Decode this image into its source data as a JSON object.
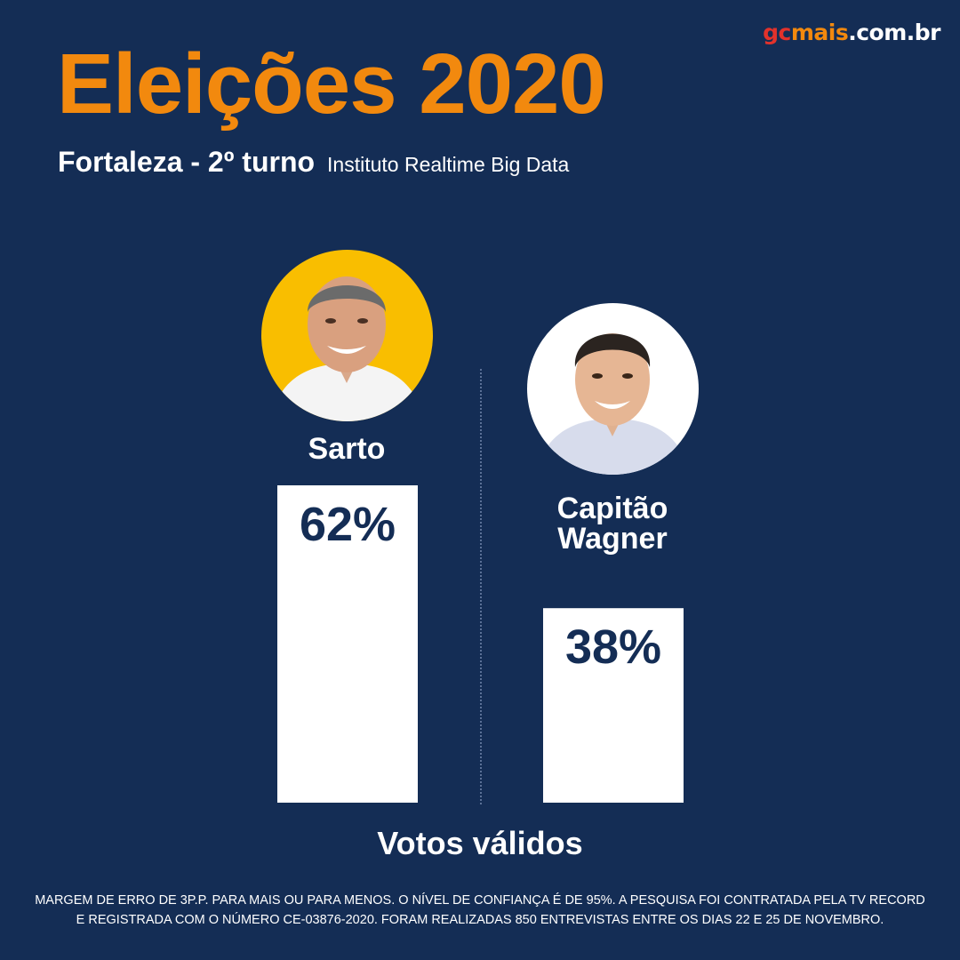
{
  "brand": {
    "part1": "gc",
    "part2": "mais",
    "part3": ".com.br"
  },
  "header": {
    "title": "Eleições 2020",
    "city_round": "Fortaleza - 2º turno",
    "source": "Instituto Realtime Big Data"
  },
  "candidates": [
    {
      "name": "Sarto",
      "avatar_bg": "#f9be00"
    },
    {
      "name": "Capitão Wagner",
      "avatar_bg": "#ffffff"
    }
  ],
  "chart_data": {
    "type": "bar",
    "categories": [
      "Sarto",
      "Capitão Wagner"
    ],
    "values": [
      62,
      38
    ],
    "value_labels": [
      "62%",
      "38%"
    ],
    "unit": "%",
    "xlabel": "Votos válidos",
    "ylim": [
      0,
      62
    ],
    "grid": false,
    "bar_color": "#ffffff",
    "label_color": "#142d55"
  },
  "footnote": {
    "line1": "MARGEM DE ERRO DE 3P.P. PARA MAIS OU PARA MENOS. O NÍVEL DE CONFIANÇA É DE 95%. A PESQUISA FOI CONTRATADA PELA TV RECORD",
    "line2": "E REGISTRADA COM O NÚMERO CE-03876-2020. FORAM REALIZADAS 850 ENTREVISTAS ENTRE OS DIAS 22 E 25 DE NOVEMBRO."
  },
  "colors": {
    "background": "#142d55",
    "accent": "#f2890e",
    "brand_red": "#e3322b"
  }
}
